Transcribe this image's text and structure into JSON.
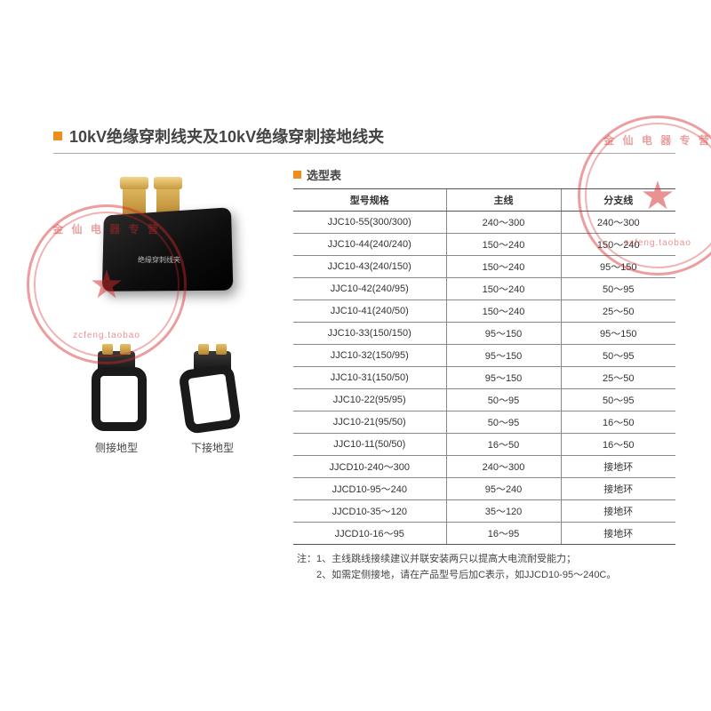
{
  "title": "10kV绝缘穿刺线夹及10kV绝缘穿刺接地线夹",
  "product_label": "绝缘穿刺线夹",
  "sub_products": [
    {
      "label": "侧接地型"
    },
    {
      "label": "下接地型"
    }
  ],
  "table": {
    "title": "选型表",
    "columns": [
      "型号规格",
      "主线",
      "分支线"
    ],
    "rows": [
      [
        "JJC10-55(300/300)",
        "240～300",
        "240～300"
      ],
      [
        "JJC10-44(240/240)",
        "150～240",
        "150～240"
      ],
      [
        "JJC10-43(240/150)",
        "150～240",
        "95～150"
      ],
      [
        "JJC10-42(240/95)",
        "150～240",
        "50～95"
      ],
      [
        "JJC10-41(240/50)",
        "150～240",
        "25～50"
      ],
      [
        "JJC10-33(150/150)",
        "95～150",
        "95～150"
      ],
      [
        "JJC10-32(150/95)",
        "95～150",
        "50～95"
      ],
      [
        "JJC10-31(150/50)",
        "95～150",
        "25～50"
      ],
      [
        "JJC10-22(95/95)",
        "50～95",
        "50～95"
      ],
      [
        "JJC10-21(95/50)",
        "50～95",
        "16～50"
      ],
      [
        "JJC10-11(50/50)",
        "16～50",
        "16～50"
      ],
      [
        "JJCD10-240～300",
        "240～300",
        "接地环"
      ],
      [
        "JJCD10-95～240",
        "95～240",
        "接地环"
      ],
      [
        "JJCD10-35～120",
        "35～120",
        "接地环"
      ],
      [
        "JJCD10-16～95",
        "16～95",
        "接地环"
      ]
    ]
  },
  "notes": {
    "prefix": "注：",
    "line1": "1、主线跳线接续建议并联安装两只以提高大电流耐受能力；",
    "line2": "2、如需定侧接地，请在产品型号后加C表示，如JJCD10-95～240C。"
  },
  "stamps": {
    "arc_text": "金 仙 电 器 专 营",
    "bottom_text": "zcfeng.taobao",
    "star": "★"
  },
  "colors": {
    "accent": "#f08c1e",
    "stamp": "rgba(213,38,38,0.5)",
    "text": "#333333",
    "border": "#888888"
  }
}
